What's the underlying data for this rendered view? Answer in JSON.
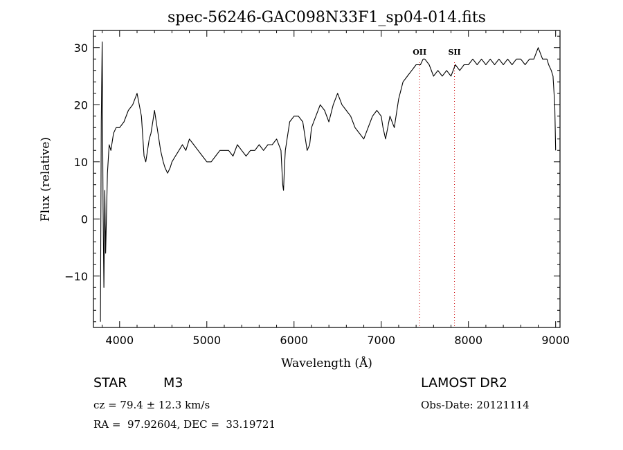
{
  "chart_data": {
    "type": "line",
    "title": "spec-56246-GAC098N33F1_sp04-014.fits",
    "xlabel": "Wavelength (Å)",
    "ylabel": "Flux (relative)",
    "xlim": [
      3700,
      9050
    ],
    "ylim": [
      -19,
      33
    ],
    "xticks": [
      4000,
      5000,
      6000,
      7000,
      8000,
      9000
    ],
    "yticks": [
      -10,
      0,
      10,
      20,
      30
    ],
    "grid": false,
    "series": [
      {
        "color": "#000000",
        "x": [
          3780,
          3790,
          3800,
          3810,
          3820,
          3830,
          3840,
          3860,
          3880,
          3900,
          3930,
          3960,
          4000,
          4050,
          4100,
          4150,
          4200,
          4250,
          4280,
          4300,
          4320,
          4340,
          4360,
          4380,
          4400,
          4430,
          4470,
          4500,
          4520,
          4550,
          4580,
          4600,
          4640,
          4680,
          4720,
          4760,
          4800,
          4850,
          4900,
          4950,
          5000,
          5050,
          5100,
          5150,
          5200,
          5250,
          5300,
          5350,
          5400,
          5450,
          5500,
          5550,
          5600,
          5650,
          5700,
          5750,
          5800,
          5850,
          5870,
          5880,
          5890,
          5900,
          5920,
          5950,
          6000,
          6050,
          6100,
          6150,
          6180,
          6200,
          6250,
          6300,
          6350,
          6400,
          6450,
          6500,
          6550,
          6600,
          6650,
          6700,
          6750,
          6800,
          6850,
          6900,
          6950,
          7000,
          7020,
          7050,
          7100,
          7150,
          7200,
          7250,
          7300,
          7350,
          7400,
          7450,
          7480,
          7500,
          7550,
          7600,
          7650,
          7700,
          7750,
          7800,
          7850,
          7900,
          7950,
          8000,
          8050,
          8100,
          8150,
          8200,
          8250,
          8300,
          8350,
          8400,
          8450,
          8500,
          8550,
          8600,
          8650,
          8700,
          8750,
          8800,
          8850,
          8900,
          8920,
          8950,
          8970,
          8990,
          9000
        ],
        "y": [
          -18,
          17,
          31,
          2,
          -12,
          5,
          -6,
          8,
          13,
          12,
          15,
          16,
          16,
          17,
          19,
          20,
          22,
          18,
          11,
          10,
          12,
          14,
          15,
          17,
          19,
          16,
          12,
          10,
          9,
          8,
          9,
          10,
          11,
          12,
          13,
          12,
          14,
          13,
          12,
          11,
          10,
          10,
          11,
          12,
          12,
          12,
          11,
          13,
          12,
          11,
          12,
          12,
          13,
          12,
          13,
          13,
          14,
          12,
          6,
          5,
          9,
          12,
          14,
          17,
          18,
          18,
          17,
          12,
          13,
          16,
          18,
          20,
          19,
          17,
          20,
          22,
          20,
          19,
          18,
          16,
          15,
          14,
          16,
          18,
          19,
          18,
          16,
          14,
          18,
          16,
          21,
          24,
          25,
          26,
          27,
          27,
          28,
          28,
          27,
          25,
          26,
          25,
          26,
          25,
          27,
          26,
          27,
          27,
          28,
          27,
          28,
          27,
          28,
          27,
          28,
          27,
          28,
          27,
          28,
          28,
          27,
          28,
          28,
          30,
          28,
          28,
          27,
          26,
          25,
          20,
          12
        ]
      }
    ],
    "annotations": [
      {
        "label": "OII",
        "x": 7440
      },
      {
        "label": "SII",
        "x": 7840
      }
    ]
  },
  "info": {
    "object_class": "STAR",
    "subclass": "M3",
    "survey": "LAMOST DR2",
    "cz": "cz = 79.4 ± 12.3 km/s",
    "obs_date": "Obs-Date: 20121114",
    "coords": "RA =  97.92604, DEC =  33.19721"
  }
}
